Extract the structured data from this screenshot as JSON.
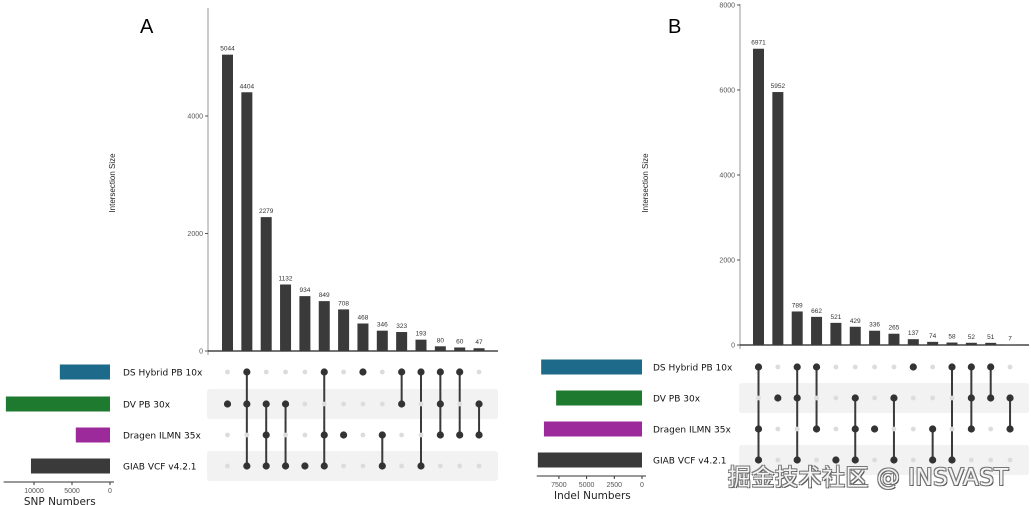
{
  "colors": {
    "bar": "#3a3a3a",
    "dot_on": "#333333",
    "dot_off": "#dcdcdc",
    "band": "#f2f2f2",
    "sets": {
      "DS Hybrid PB 10x": "#1d6a8a",
      "DV PB 30x": "#1e7a2e",
      "Dragen ILMN 35x": "#9c2a9a",
      "GIAB VCF v4.2.1": "#3a3a3a"
    }
  },
  "watermark": "掘金技术社区 @ INSVAST",
  "chart_data": [
    {
      "type": "bar",
      "subtype": "upset",
      "panel": "A",
      "ylabel": "Intersection Size",
      "ylim": [
        0,
        5600
      ],
      "yticks": [
        0,
        2000,
        4000
      ],
      "ytick_labels": [
        "0",
        "2000",
        "4000"
      ],
      "values": [
        5044,
        4404,
        2279,
        1132,
        934,
        849,
        708,
        468,
        346,
        323,
        193,
        80,
        60,
        47
      ],
      "sets": [
        "DS Hybrid PB 10x",
        "DV PB 30x",
        "Dragen ILMN 35x",
        "GIAB VCF v4.2.1"
      ],
      "membership": [
        [
          1
        ],
        [
          0,
          1,
          3
        ],
        [
          1,
          2,
          3
        ],
        [
          1,
          3
        ],
        [
          3
        ],
        [
          0,
          2,
          3
        ],
        [
          2
        ],
        [
          0
        ],
        [
          2,
          3
        ],
        [
          0,
          1
        ],
        [
          0,
          3
        ],
        [
          0,
          1,
          2
        ],
        [
          0,
          2
        ],
        [
          1,
          2
        ]
      ],
      "set_sizes": {
        "xlabel": "SNP Numbers",
        "xlim": [
          0,
          14000
        ],
        "xticks": [
          10000,
          5000,
          0
        ],
        "xtick_labels": [
          "10000",
          "5000",
          "0"
        ],
        "values": [
          6600,
          13700,
          4500,
          10400
        ]
      }
    },
    {
      "type": "bar",
      "subtype": "upset",
      "panel": "B",
      "ylabel": "Intersection Size",
      "ylim": [
        0,
        8000
      ],
      "yticks": [
        0,
        2000,
        4000,
        6000,
        8000
      ],
      "ytick_labels": [
        "0",
        "2000",
        "4000",
        "6000",
        "8000"
      ],
      "values": [
        6971,
        5952,
        789,
        662,
        521,
        429,
        336,
        265,
        137,
        74,
        58,
        52,
        51,
        7
      ],
      "sets": [
        "DS Hybrid PB 10x",
        "DV PB 30x",
        "Dragen ILMN 35x",
        "GIAB VCF v4.2.1"
      ],
      "membership": [
        [
          0,
          2,
          3
        ],
        [
          1
        ],
        [
          0,
          1,
          3
        ],
        [
          0,
          2
        ],
        [
          3
        ],
        [
          1,
          2,
          3
        ],
        [
          2
        ],
        [
          1,
          3
        ],
        [
          0
        ],
        [
          2,
          3
        ],
        [
          0,
          3
        ],
        [
          0,
          1,
          2
        ],
        [
          0,
          1
        ],
        [
          1,
          2
        ]
      ],
      "set_sizes": {
        "xlabel": "Indel Numbers",
        "xlim": [
          0,
          9500
        ],
        "xticks": [
          7500,
          5000,
          2500,
          0
        ],
        "xtick_labels": [
          "7500",
          "5000",
          "2500",
          "0"
        ],
        "values": [
          9100,
          7750,
          8850,
          9400
        ]
      }
    }
  ]
}
